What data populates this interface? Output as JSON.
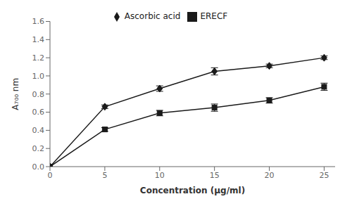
{
  "chart_data": {
    "type": "line",
    "x": [
      0,
      5,
      10,
      15,
      20,
      25
    ],
    "series": [
      {
        "name": "Ascorbic acid",
        "color": "#1a1a1a",
        "marker": "diamond",
        "values": [
          0.0,
          0.66,
          0.86,
          1.05,
          1.11,
          1.2
        ],
        "errors": [
          0.0,
          0.02,
          0.03,
          0.04,
          0.02,
          0.02
        ]
      },
      {
        "name": "ERECF",
        "color": "#1a1a1a",
        "marker": "square",
        "values": [
          0.0,
          0.41,
          0.59,
          0.65,
          0.73,
          0.88
        ],
        "errors": [
          0.0,
          0.02,
          0.03,
          0.04,
          0.03,
          0.04
        ]
      }
    ],
    "xlabel": "Concentration (μg/ml)",
    "ylabel": "A₇₀₀ nm",
    "xlim": [
      0,
      26
    ],
    "ylim": [
      0,
      1.6
    ],
    "xticks": [
      0,
      5,
      10,
      15,
      20,
      25
    ],
    "yticks": [
      {
        "value": 0,
        "label": "0.0"
      },
      0.2,
      0.4,
      0.6,
      0.8,
      {
        "value": 1,
        "label": "1.0"
      },
      1.2,
      1.4,
      1.6
    ],
    "legend": "top"
  }
}
